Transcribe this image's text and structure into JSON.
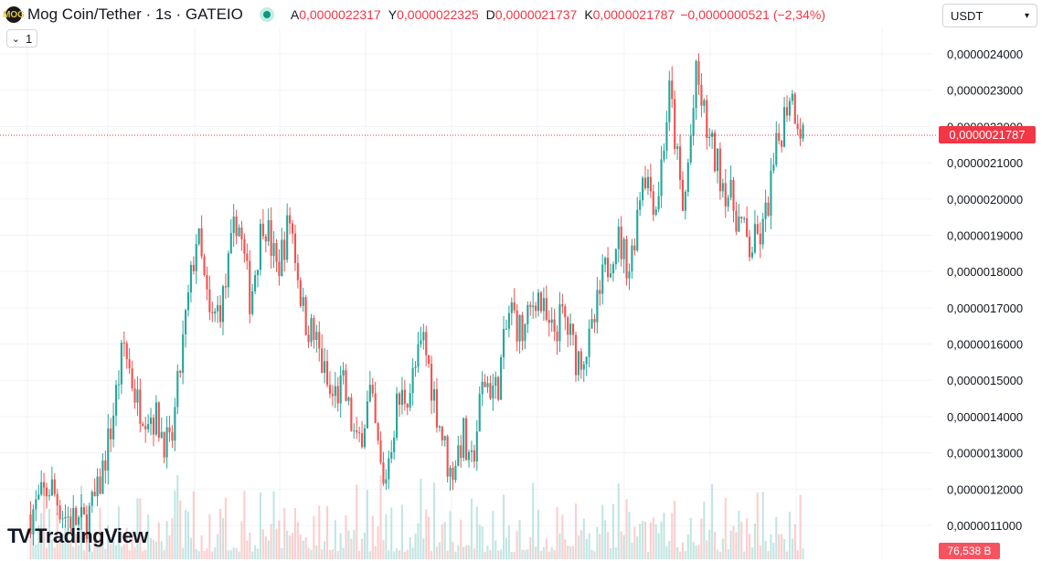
{
  "header": {
    "symbol_logo_text": "MOG",
    "title": "Mog Coin/Tether · 1s · GATEIO",
    "ohlc": [
      {
        "label": "A",
        "value": "0,0000022317"
      },
      {
        "label": "Y",
        "value": "0,0000022325"
      },
      {
        "label": "D",
        "value": "0,0000021737"
      },
      {
        "label": "K",
        "value": "0,0000021787"
      }
    ],
    "change": "−0,0000000521 (−2,34%)"
  },
  "interval_toggle": {
    "chevron": "⌄",
    "value": "1"
  },
  "currency_select": {
    "value": "USDT",
    "chevron": "▾"
  },
  "watermark": {
    "icon": "TV",
    "text": "TradingView"
  },
  "price_tag": "0,0000021787",
  "volume_tag": "76,538 B",
  "colors": {
    "up": "#26a69a",
    "down": "#ef5350",
    "grid": "#f0f3fa",
    "last_price": "#f23645"
  },
  "chart_data": {
    "type": "candlestick",
    "symbol": "Mog Coin/Tether",
    "interval": "1s",
    "exchange": "GATEIO",
    "y_tick_labels": [
      "0,0000024000",
      "0,0000023000",
      "0,0000022000",
      "0,0000021000",
      "0,0000020000",
      "0,0000019000",
      "0,0000018000",
      "0,0000017000",
      "0,0000016000",
      "0,0000015000",
      "0,0000014000",
      "0,0000013000",
      "0,0000012000",
      "0,0000011000"
    ],
    "y_ticks": [
      2.4e-06,
      2.3e-06,
      2.2e-06,
      2.1e-06,
      2e-06,
      1.9e-06,
      1.8e-06,
      1.7e-06,
      1.6e-06,
      1.5e-06,
      1.4e-06,
      1.3e-06,
      1.2e-06,
      1.1e-06
    ],
    "ylim": [
      1.05e-06,
      2.44e-06
    ],
    "last_price": 2.1787e-06,
    "grid": true,
    "close_path": [
      [
        0,
        1.13e-06
      ],
      [
        0.03,
        1.21e-06
      ],
      [
        0.05,
        1.13e-06
      ],
      [
        0.08,
        1.1e-06
      ],
      [
        0.1,
        1.18e-06
      ],
      [
        0.12,
        1.36e-06
      ],
      [
        0.14,
        1.6e-06
      ],
      [
        0.16,
        1.44e-06
      ],
      [
        0.19,
        1.39e-06
      ],
      [
        0.21,
        1.3e-06
      ],
      [
        0.23,
        1.62e-06
      ],
      [
        0.25,
        1.91e-06
      ],
      [
        0.27,
        1.65e-06
      ],
      [
        0.29,
        1.73e-06
      ],
      [
        0.31,
        1.96e-06
      ],
      [
        0.33,
        1.72e-06
      ],
      [
        0.35,
        1.96e-06
      ],
      [
        0.37,
        1.8e-06
      ],
      [
        0.39,
        1.95e-06
      ],
      [
        0.41,
        1.68e-06
      ],
      [
        0.43,
        1.6e-06
      ],
      [
        0.45,
        1.45e-06
      ],
      [
        0.47,
        1.48e-06
      ],
      [
        0.49,
        1.31e-06
      ],
      [
        0.51,
        1.46e-06
      ],
      [
        0.53,
        1.2e-06
      ],
      [
        0.55,
        1.43e-06
      ],
      [
        0.57,
        1.48e-06
      ],
      [
        0.59,
        1.61e-06
      ],
      [
        0.61,
        1.42e-06
      ],
      [
        0.63,
        1.24e-06
      ],
      [
        0.65,
        1.35e-06
      ],
      [
        0.66,
        1.23e-06
      ],
      [
        0.68,
        1.5e-06
      ],
      [
        0.7,
        1.47e-06
      ],
      [
        0.72,
        1.7e-06
      ],
      [
        0.74,
        1.62e-06
      ],
      [
        0.76,
        1.75e-06
      ],
      [
        0.78,
        1.62e-06
      ],
      [
        0.8,
        1.68e-06
      ],
      [
        0.82,
        1.56e-06
      ],
      [
        0.84,
        1.6e-06
      ],
      [
        0.86,
        1.78e-06
      ],
      [
        0.88,
        1.9e-06
      ],
      [
        0.9,
        1.81e-06
      ],
      [
        0.92,
        2.09e-06
      ],
      [
        0.94,
        1.98e-06
      ],
      [
        0.96,
        2.3e-06
      ],
      [
        0.98,
        1.95e-06
      ],
      [
        1.0,
        2.34e-06
      ],
      [
        1.02,
        2.15e-06
      ],
      [
        1.04,
        2.05e-06
      ],
      [
        1.06,
        1.96e-06
      ],
      [
        1.08,
        1.86e-06
      ],
      [
        1.1,
        1.91e-06
      ],
      [
        1.12,
        2.13e-06
      ],
      [
        1.14,
        2.3e-06
      ],
      [
        1.16,
        2.18e-06
      ]
    ]
  }
}
